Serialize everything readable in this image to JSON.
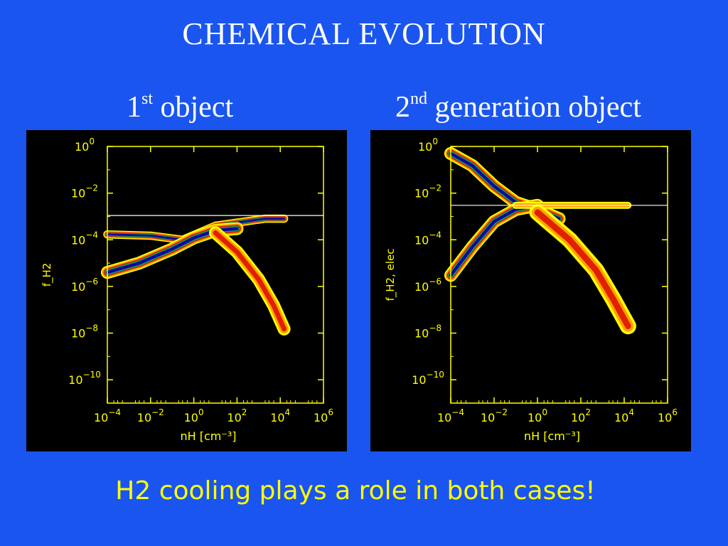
{
  "slide": {
    "title": "CHEMICAL  EVOLUTION",
    "caption": "H2 cooling plays a role in both cases!",
    "background_color": "#1a55f0",
    "caption_color": "#ffff00"
  },
  "panels": [
    {
      "heading_main": "1",
      "heading_sup": "st",
      "heading_rest": " object"
    },
    {
      "heading_main": "2",
      "heading_sup": "nd",
      "heading_rest": " generation object"
    }
  ],
  "chart_data": [
    {
      "type": "heatmap",
      "xlabel": "nH [cm⁻³]",
      "ylabel": "f_H2",
      "xscale": "log",
      "yscale": "log",
      "xlim": [
        0.0001,
        1000000
      ],
      "ylim": [
        1e-11,
        1
      ],
      "x_ticks": [
        {
          "base": "10",
          "exp": "−4",
          "value": 0.0001
        },
        {
          "base": "10",
          "exp": "−2",
          "value": 0.01
        },
        {
          "base": "10",
          "exp": "0",
          "value": 1
        },
        {
          "base": "10",
          "exp": "2",
          "value": 100
        },
        {
          "base": "10",
          "exp": "4",
          "value": 10000
        },
        {
          "base": "10",
          "exp": "6",
          "value": 1000000
        }
      ],
      "y_ticks": [
        {
          "base": "10",
          "exp": "0",
          "value": 1
        },
        {
          "base": "10",
          "exp": "−2",
          "value": 0.01
        },
        {
          "base": "10",
          "exp": "−4",
          "value": 0.0001
        },
        {
          "base": "10",
          "exp": "−6",
          "value": 1e-06
        },
        {
          "base": "10",
          "exp": "−8",
          "value": 1e-08
        },
        {
          "base": "10",
          "exp": "−10",
          "value": 1e-10
        }
      ],
      "reference_line_y": 0.0011,
      "colors": {
        "axes": "#ffff00",
        "reference_line": "#ffffff"
      },
      "density_levels": [
        "#ffff00",
        "#ffa000",
        "#e02000",
        "#00a050",
        "#1000a0"
      ],
      "regions": [
        {
          "name": "upper-branch",
          "path": [
            [
              0.0001,
              0.00017
            ],
            [
              0.01,
              0.00015
            ],
            [
              0.3,
              0.0001
            ],
            [
              10,
              0.0004
            ],
            [
              2000,
              0.0008
            ],
            [
              15000,
              0.0008
            ]
          ],
          "width_dex": 0.35,
          "max_level": 4
        },
        {
          "name": "lower-branch",
          "path": [
            [
              0.0001,
              4e-06
            ],
            [
              0.003,
              1e-05
            ],
            [
              0.1,
              4e-05
            ],
            [
              1,
              0.00012
            ],
            [
              10,
              0.00025
            ],
            [
              100,
              0.0003
            ]
          ],
          "width_dex": 0.55,
          "max_level": 4
        },
        {
          "name": "collapse-tail",
          "path": [
            [
              10,
              0.0002
            ],
            [
              100,
              3e-05
            ],
            [
              1000,
              2e-06
            ],
            [
              5000,
              1.5e-07
            ],
            [
              15000,
              1.5e-08
            ]
          ],
          "width_dex": 0.55,
          "max_level": 2
        }
      ]
    },
    {
      "type": "heatmap",
      "xlabel": "nH [cm⁻³]",
      "ylabel": "f_H2, elec",
      "xscale": "log",
      "yscale": "log",
      "xlim": [
        0.0001,
        1000000
      ],
      "ylim": [
        1e-11,
        1
      ],
      "x_ticks": [
        {
          "base": "10",
          "exp": "−4",
          "value": 0.0001
        },
        {
          "base": "10",
          "exp": "−2",
          "value": 0.01
        },
        {
          "base": "10",
          "exp": "0",
          "value": 1
        },
        {
          "base": "10",
          "exp": "2",
          "value": 100
        },
        {
          "base": "10",
          "exp": "4",
          "value": 10000
        },
        {
          "base": "10",
          "exp": "6",
          "value": 1000000
        }
      ],
      "y_ticks": [
        {
          "base": "10",
          "exp": "0",
          "value": 1
        },
        {
          "base": "10",
          "exp": "−2",
          "value": 0.01
        },
        {
          "base": "10",
          "exp": "−4",
          "value": 0.0001
        },
        {
          "base": "10",
          "exp": "−6",
          "value": 1e-06
        },
        {
          "base": "10",
          "exp": "−8",
          "value": 1e-08
        },
        {
          "base": "10",
          "exp": "−10",
          "value": 1e-10
        }
      ],
      "reference_line_y": 0.003,
      "colors": {
        "axes": "#ffff00",
        "reference_line": "#ffffff"
      },
      "density_levels": [
        "#ffff00",
        "#ffa000",
        "#e02000",
        "#00a050",
        "#1000a0"
      ],
      "regions": [
        {
          "name": "electron-branch",
          "path": [
            [
              0.0001,
              0.5
            ],
            [
              0.001,
              0.15
            ],
            [
              0.01,
              0.02
            ],
            [
              0.1,
              0.004
            ],
            [
              1,
              0.002
            ],
            [
              10,
              0.0008
            ]
          ],
          "width_dex": 0.55,
          "max_level": 4
        },
        {
          "name": "h2-rising-branch",
          "path": [
            [
              0.0001,
              3e-06
            ],
            [
              0.001,
              5e-05
            ],
            [
              0.01,
              0.0006
            ],
            [
              0.1,
              0.002
            ],
            [
              1,
              0.003
            ]
          ],
          "width_dex": 0.55,
          "max_level": 4
        },
        {
          "name": "h2-plateau",
          "path": [
            [
              0.1,
              0.003
            ],
            [
              10,
              0.003
            ],
            [
              1000,
              0.003
            ],
            [
              15000,
              0.003
            ]
          ],
          "width_dex": 0.3,
          "max_level": 1
        },
        {
          "name": "electron-tail",
          "path": [
            [
              1,
              0.0015
            ],
            [
              30,
              0.0001
            ],
            [
              500,
              5e-06
            ],
            [
              3000,
              3e-07
            ],
            [
              15000,
              2e-08
            ]
          ],
          "width_dex": 0.7,
          "max_level": 2
        }
      ]
    }
  ]
}
